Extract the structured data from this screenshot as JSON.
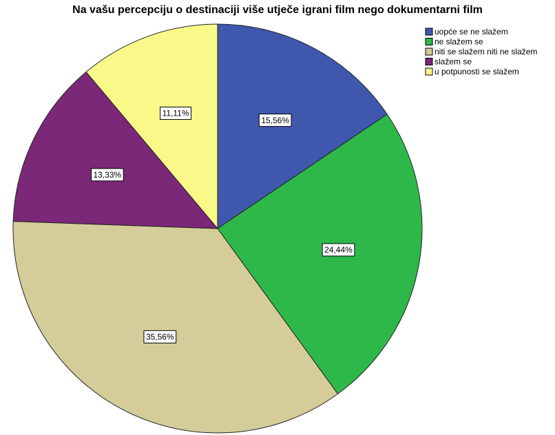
{
  "chart_data": {
    "type": "pie",
    "title": "Na vašu percepciju o destinaciji više utječe igrani film nego dokumentarni film",
    "categories": [
      "uopće se ne slažem",
      "ne slažem se",
      "niti se slažem niti ne slažem",
      "slažem se",
      "u potpunosti se slažem"
    ],
    "values": [
      15.56,
      24.44,
      35.56,
      13.33,
      11.11
    ],
    "value_labels": [
      "15,56%",
      "24,44%",
      "35,56%",
      "13,33%",
      "11,11%"
    ],
    "colors": [
      "#3f58ad",
      "#2fb84a",
      "#d4cc99",
      "#7b2878",
      "#fbf88a"
    ],
    "legend": "top-right"
  }
}
